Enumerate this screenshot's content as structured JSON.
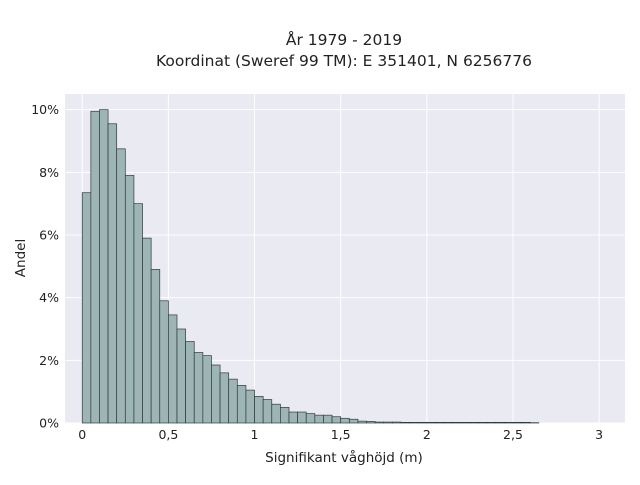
{
  "chart_data": {
    "type": "bar",
    "title_lines": [
      "År 1979 - 2019",
      "Koordinat (Sweref 99 TM): E 351401, N 6256776"
    ],
    "xlabel": "Signifikant våghöjd (m)",
    "ylabel": "Andel",
    "xlim": [
      -0.1,
      3.15
    ],
    "ylim": [
      0,
      10.5
    ],
    "x_ticks": [
      0,
      0.5,
      1,
      1.5,
      2,
      2.5,
      3
    ],
    "x_tick_labels": [
      "0",
      "0,5",
      "1",
      "1,5",
      "2",
      "2,5",
      "3"
    ],
    "y_ticks": [
      0,
      2,
      4,
      6,
      8,
      10
    ],
    "y_tick_labels": [
      "0%",
      "2%",
      "4%",
      "6%",
      "8%",
      "10%"
    ],
    "bin_start": 0.0,
    "bin_width": 0.05,
    "values": [
      7.35,
      9.95,
      10.0,
      9.55,
      8.75,
      7.9,
      7.0,
      5.9,
      4.9,
      3.9,
      3.45,
      3.0,
      2.6,
      2.25,
      2.15,
      1.85,
      1.6,
      1.4,
      1.2,
      1.05,
      0.85,
      0.75,
      0.6,
      0.5,
      0.35,
      0.35,
      0.3,
      0.25,
      0.25,
      0.2,
      0.15,
      0.12,
      0.06,
      0.05,
      0.03,
      0.03,
      0.03,
      0.02,
      0.02,
      0.02,
      0.02,
      0.02,
      0.02,
      0.02,
      0.02,
      0.02,
      0.02,
      0.02,
      0.02,
      0.02,
      0.02,
      0.02,
      0.01
    ],
    "grid": true,
    "bar_color": "#9db5b5",
    "bar_edge_color": "#2f3b3b",
    "plot_background": "#eaeaf2"
  }
}
